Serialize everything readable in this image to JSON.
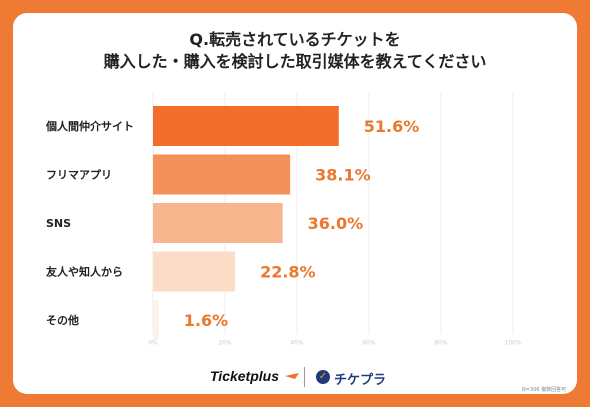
{
  "title": {
    "line1": "Q.転売されているチケットを",
    "line2": "購入した・購入を検討した取引媒体を教えてください"
  },
  "chart_data": {
    "type": "bar",
    "orientation": "horizontal",
    "categories": [
      "個人間仲介サイト",
      "フリマアプリ",
      "SNS",
      "友人や知人から",
      "その他"
    ],
    "values": [
      51.6,
      38.1,
      36.0,
      22.8,
      1.6
    ],
    "value_labels": [
      "51.6%",
      "38.1%",
      "36.0%",
      "22.8%",
      "1.6%"
    ],
    "bar_colors": [
      "#f26e2a",
      "#f4915a",
      "#f8b68e",
      "#fbdcc6",
      "#fdf0e7"
    ],
    "label_color": "#e8792f",
    "xlim": [
      0,
      100
    ],
    "xticks": [
      "0%",
      "20%",
      "40%",
      "60%",
      "80%",
      "100%"
    ],
    "grid": true
  },
  "footer": {
    "logo_ticketplus": "Ticketplus",
    "logo_chikepura": "チケプラ",
    "logo_chikepura_mark": "✓"
  },
  "note": "N=306 複数回答可"
}
